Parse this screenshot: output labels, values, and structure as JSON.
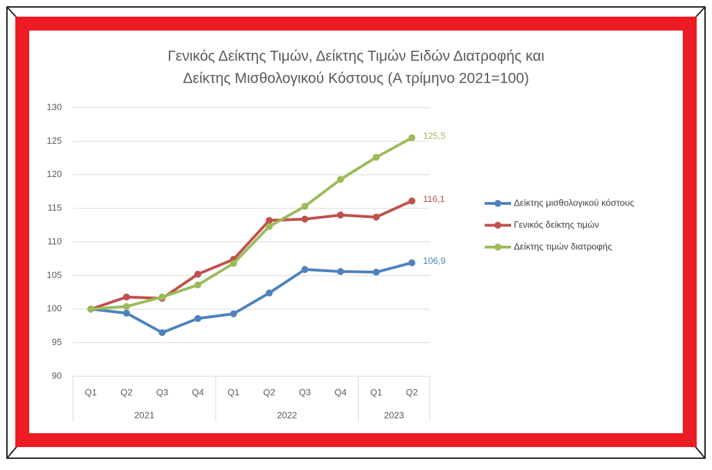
{
  "chart_data": {
    "type": "line",
    "title": [
      "Γενικός Δείκτης Τιμών, Δείκτης Τιμών Ειδών Διατροφής και",
      "Δείκτης Μισθολογικού Κόστους (Α τρίμηνο 2021=100)"
    ],
    "category_groups": [
      {
        "name": "2021",
        "categories": [
          "Q1",
          "Q2",
          "Q3",
          "Q4"
        ]
      },
      {
        "name": "2022",
        "categories": [
          "Q1",
          "Q2",
          "Q3",
          "Q4"
        ]
      },
      {
        "name": "2023",
        "categories": [
          "Q1",
          "Q2"
        ]
      }
    ],
    "series": [
      {
        "name": "Δείκτης μισθολογικού κόστους",
        "color": "#4f81bd",
        "values": [
          100,
          99.4,
          96.5,
          98.6,
          99.3,
          102.4,
          105.9,
          105.6,
          105.5,
          106.9
        ],
        "value_labels": [
          null,
          null,
          null,
          null,
          null,
          null,
          null,
          null,
          null,
          "106,9"
        ]
      },
      {
        "name": "Γενικός δείκτης τιμών",
        "color": "#c0504d",
        "values": [
          100,
          101.8,
          101.6,
          105.2,
          107.4,
          113.2,
          113.4,
          114.0,
          113.7,
          116.1
        ],
        "value_labels": [
          null,
          null,
          null,
          null,
          null,
          null,
          null,
          null,
          null,
          "116,1"
        ]
      },
      {
        "name": "Δείκτης τιμών διατροφής",
        "color": "#9bbb59",
        "values": [
          100,
          100.4,
          101.8,
          103.6,
          106.8,
          112.3,
          115.3,
          119.3,
          122.6,
          125.5
        ],
        "value_labels": [
          null,
          null,
          null,
          null,
          null,
          null,
          null,
          null,
          null,
          "125,5"
        ]
      }
    ],
    "ylim": [
      90,
      130
    ],
    "yticks": [
      90,
      95,
      100,
      105,
      110,
      115,
      120,
      125,
      130
    ],
    "grid": true,
    "legend": "right"
  }
}
